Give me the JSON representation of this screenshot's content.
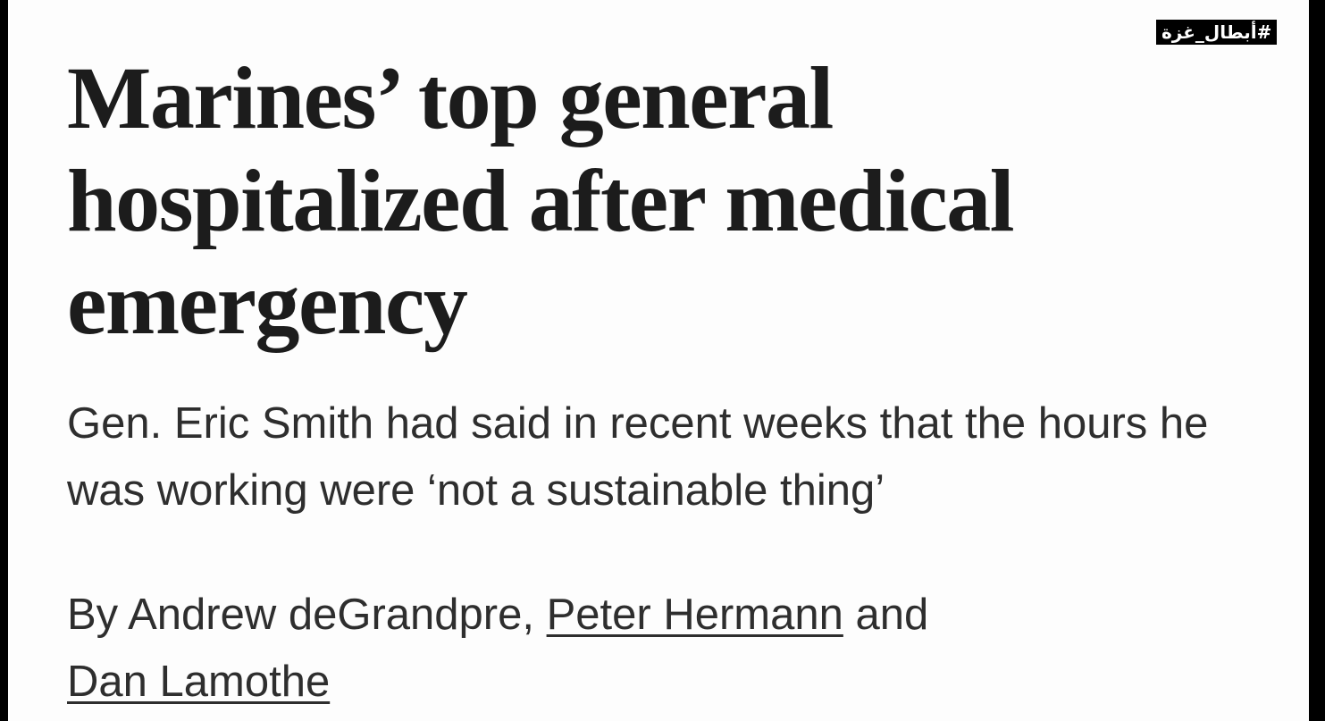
{
  "watermark": {
    "hashtag": "#أبطال_غزة"
  },
  "article": {
    "headline": "Marines’ top general hospitalized after medical emergency",
    "dek": "Gen. Eric Smith had said in recent weeks that the hours he was working were ‘not a sustainable thing’",
    "byline": {
      "prefix": "By Andrew deGrandpre, ",
      "author2": "Peter Hermann",
      "conjunction": " and ",
      "author3": "Dan Lamothe"
    }
  }
}
